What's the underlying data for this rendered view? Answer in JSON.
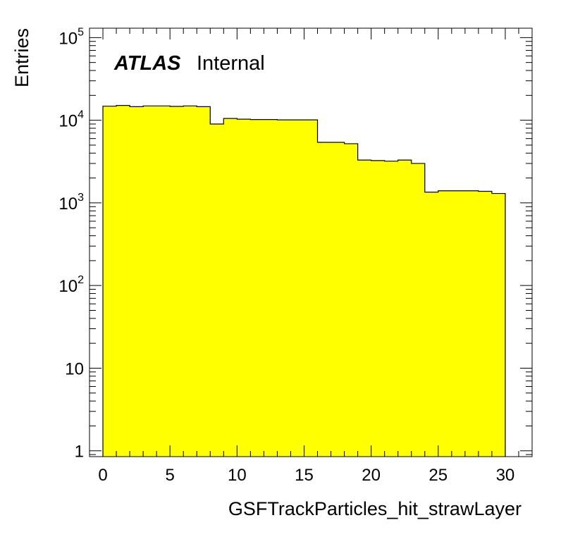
{
  "chart_data": {
    "type": "bar",
    "title": "",
    "xlabel": "GSFTrackParticles_hit_strawLayer",
    "ylabel": "Entries",
    "xlim": [
      -1,
      32
    ],
    "ylim": [
      0.85,
      130000
    ],
    "yscale": "log",
    "x_ticks": [
      0,
      5,
      10,
      15,
      20,
      25,
      30
    ],
    "y_ticks": [
      {
        "value": 1,
        "base": "1",
        "exp": ""
      },
      {
        "value": 10,
        "base": "10",
        "exp": ""
      },
      {
        "value": 100,
        "base": "10",
        "exp": "2"
      },
      {
        "value": 1000,
        "base": "10",
        "exp": "3"
      },
      {
        "value": 10000,
        "base": "10",
        "exp": "4"
      },
      {
        "value": 100000,
        "base": "10",
        "exp": "5"
      }
    ],
    "fill_color": "#ffff00",
    "line_color": "#000000",
    "bins": [
      {
        "x0": 0,
        "x1": 1,
        "value": 14800
      },
      {
        "x0": 1,
        "x1": 2,
        "value": 15100
      },
      {
        "x0": 2,
        "x1": 3,
        "value": 14600
      },
      {
        "x0": 3,
        "x1": 4,
        "value": 14900
      },
      {
        "x0": 4,
        "x1": 5,
        "value": 14900
      },
      {
        "x0": 5,
        "x1": 6,
        "value": 14700
      },
      {
        "x0": 6,
        "x1": 7,
        "value": 14900
      },
      {
        "x0": 7,
        "x1": 8,
        "value": 14600
      },
      {
        "x0": 8,
        "x1": 9,
        "value": 9000
      },
      {
        "x0": 9,
        "x1": 10,
        "value": 10500
      },
      {
        "x0": 10,
        "x1": 11,
        "value": 10300
      },
      {
        "x0": 11,
        "x1": 12,
        "value": 10200
      },
      {
        "x0": 12,
        "x1": 13,
        "value": 10200
      },
      {
        "x0": 13,
        "x1": 14,
        "value": 10100
      },
      {
        "x0": 14,
        "x1": 15,
        "value": 10100
      },
      {
        "x0": 15,
        "x1": 16,
        "value": 10100
      },
      {
        "x0": 16,
        "x1": 17,
        "value": 5400
      },
      {
        "x0": 17,
        "x1": 18,
        "value": 5400
      },
      {
        "x0": 18,
        "x1": 19,
        "value": 5200
      },
      {
        "x0": 19,
        "x1": 20,
        "value": 3300
      },
      {
        "x0": 20,
        "x1": 21,
        "value": 3250
      },
      {
        "x0": 21,
        "x1": 22,
        "value": 3200
      },
      {
        "x0": 22,
        "x1": 23,
        "value": 3300
      },
      {
        "x0": 23,
        "x1": 24,
        "value": 3000
      },
      {
        "x0": 24,
        "x1": 25,
        "value": 1350
      },
      {
        "x0": 25,
        "x1": 26,
        "value": 1400
      },
      {
        "x0": 26,
        "x1": 27,
        "value": 1400
      },
      {
        "x0": 27,
        "x1": 28,
        "value": 1400
      },
      {
        "x0": 28,
        "x1": 29,
        "value": 1380
      },
      {
        "x0": 29,
        "x1": 30,
        "value": 1300
      }
    ],
    "annotations": {
      "experiment": "ATLAS",
      "status": "Internal"
    },
    "legend": "none",
    "grid": false
  }
}
